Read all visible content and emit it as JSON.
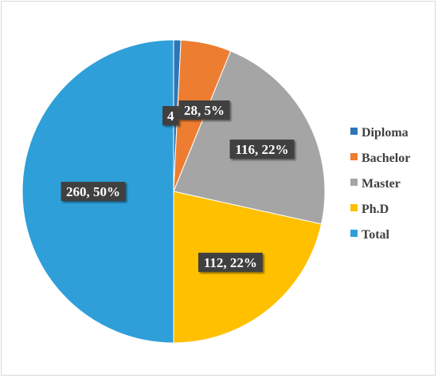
{
  "chart_data": {
    "type": "pie",
    "title": "",
    "categories": [
      "Diploma",
      "Bachelor",
      "Master",
      "Ph.D",
      "Total"
    ],
    "values": [
      4,
      28,
      116,
      112,
      260
    ],
    "percent_labels": [
      "",
      "5%",
      "22%",
      "22%",
      "50%"
    ],
    "data_labels": [
      "4",
      "28, 5%",
      "116, 22%",
      "112, 22%",
      "260, 50%"
    ],
    "colors": [
      "#2E75B6",
      "#ED7D31",
      "#A5A5A5",
      "#FFC000",
      "#2E9FD9"
    ],
    "legend_position": "right"
  }
}
